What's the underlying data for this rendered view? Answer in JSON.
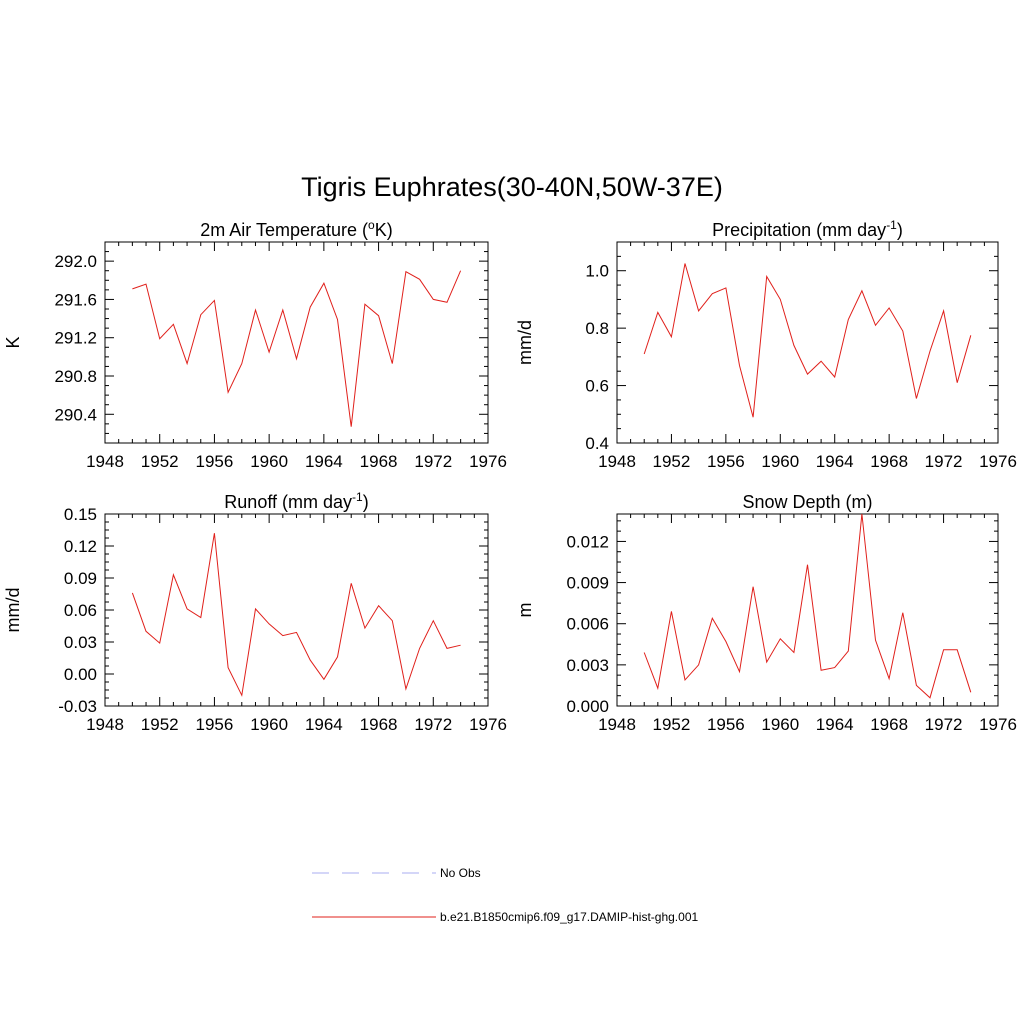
{
  "figure": {
    "title": "Tigris Euphrates(30-40N,50W-37E)"
  },
  "colors": {
    "model_series": "#e0201b",
    "obs_series": "#a9aef0",
    "axis": "#000000"
  },
  "legend": {
    "placement": "bottom-center",
    "entries": [
      {
        "label": "No Obs",
        "style": "dashed",
        "color": "#a9aef0"
      },
      {
        "label": "b.e21.B1850cmip6.f09_g17.DAMIP-hist-ghg.001",
        "style": "solid",
        "color": "#e0201b"
      }
    ]
  },
  "chart_data": [
    {
      "type": "line",
      "title": "2m Air Temperature",
      "title_tail": "K)",
      "title_sup": "o",
      "title_sup_prefix": "(",
      "ylabel": "K",
      "xlim": [
        1948,
        1976
      ],
      "ylim": [
        290.1,
        292.2
      ],
      "xticks": [
        "1948",
        "1952",
        "1956",
        "1960",
        "1964",
        "1968",
        "1972",
        "1976"
      ],
      "yticks": [
        "290.4",
        "290.8",
        "291.2",
        "291.6",
        "292.0"
      ],
      "series": [
        {
          "x": [
            1950,
            1951,
            1952,
            1953,
            1954,
            1955,
            1956,
            1957,
            1958,
            1959,
            1960,
            1961,
            1962,
            1963,
            1964,
            1965,
            1966,
            1967,
            1968,
            1969,
            1970,
            1971,
            1972,
            1973,
            1974
          ],
          "values": [
            291.71,
            291.76,
            291.19,
            291.34,
            290.93,
            291.44,
            291.59,
            290.63,
            290.93,
            291.49,
            291.05,
            291.49,
            290.98,
            291.52,
            291.77,
            291.39,
            290.27,
            291.55,
            291.43,
            290.93,
            291.89,
            291.81,
            291.6,
            291.57,
            291.9
          ]
        }
      ]
    },
    {
      "type": "line",
      "title": "Precipitation (mm day",
      "title_sup": "-1",
      "title_tail": ")",
      "ylabel": "mm/d",
      "xlim": [
        1948,
        1976
      ],
      "ylim": [
        0.4,
        1.1
      ],
      "xticks": [
        "1948",
        "1952",
        "1956",
        "1960",
        "1964",
        "1968",
        "1972",
        "1976"
      ],
      "yticks": [
        "0.4",
        "0.6",
        "0.8",
        "1.0"
      ],
      "series": [
        {
          "x": [
            1950,
            1951,
            1952,
            1953,
            1954,
            1955,
            1956,
            1957,
            1958,
            1959,
            1960,
            1961,
            1962,
            1963,
            1964,
            1965,
            1966,
            1967,
            1968,
            1969,
            1970,
            1971,
            1972,
            1973,
            1974
          ],
          "values": [
            0.71,
            0.855,
            0.77,
            1.025,
            0.86,
            0.92,
            0.94,
            0.67,
            0.49,
            0.98,
            0.9,
            0.74,
            0.64,
            0.685,
            0.63,
            0.83,
            0.93,
            0.81,
            0.87,
            0.79,
            0.555,
            0.72,
            0.86,
            0.61,
            0.775
          ]
        }
      ]
    },
    {
      "type": "line",
      "title": "Runoff (mm day",
      "title_sup": "-1",
      "title_tail": ")",
      "ylabel": "mm/d",
      "xlim": [
        1948,
        1976
      ],
      "ylim": [
        -0.03,
        0.15
      ],
      "xticks": [
        "1948",
        "1952",
        "1956",
        "1960",
        "1964",
        "1968",
        "1972",
        "1976"
      ],
      "yticks": [
        "-0.03",
        "0.00",
        "0.03",
        "0.06",
        "0.09",
        "0.12",
        "0.15"
      ],
      "series": [
        {
          "x": [
            1950,
            1951,
            1952,
            1953,
            1954,
            1955,
            1956,
            1957,
            1958,
            1959,
            1960,
            1961,
            1962,
            1963,
            1964,
            1965,
            1966,
            1967,
            1968,
            1969,
            1970,
            1971,
            1972,
            1973,
            1974
          ],
          "values": [
            0.076,
            0.04,
            0.029,
            0.093,
            0.061,
            0.053,
            0.132,
            0.006,
            -0.02,
            0.061,
            0.047,
            0.036,
            0.039,
            0.013,
            -0.005,
            0.016,
            0.085,
            0.043,
            0.064,
            0.05,
            -0.014,
            0.024,
            0.05,
            0.024,
            0.027
          ]
        }
      ]
    },
    {
      "type": "line",
      "title": "Snow Depth (m)",
      "ylabel": "m",
      "xlim": [
        1948,
        1976
      ],
      "ylim": [
        0.0,
        0.014
      ],
      "xticks": [
        "1948",
        "1952",
        "1956",
        "1960",
        "1964",
        "1968",
        "1972",
        "1976"
      ],
      "yticks": [
        "0.000",
        "0.003",
        "0.006",
        "0.009",
        "0.012"
      ],
      "series": [
        {
          "x": [
            1950,
            1951,
            1952,
            1953,
            1954,
            1955,
            1956,
            1957,
            1958,
            1959,
            1960,
            1961,
            1962,
            1963,
            1964,
            1965,
            1966,
            1967,
            1968,
            1969,
            1970,
            1971,
            1972,
            1973,
            1974
          ],
          "values": [
            0.0039,
            0.0013,
            0.0069,
            0.0019,
            0.003,
            0.0064,
            0.0047,
            0.0025,
            0.0087,
            0.0032,
            0.0049,
            0.0039,
            0.0103,
            0.0026,
            0.0028,
            0.004,
            0.014,
            0.0048,
            0.002,
            0.0068,
            0.0015,
            0.0006,
            0.0041,
            0.0041,
            0.001
          ]
        }
      ]
    }
  ]
}
